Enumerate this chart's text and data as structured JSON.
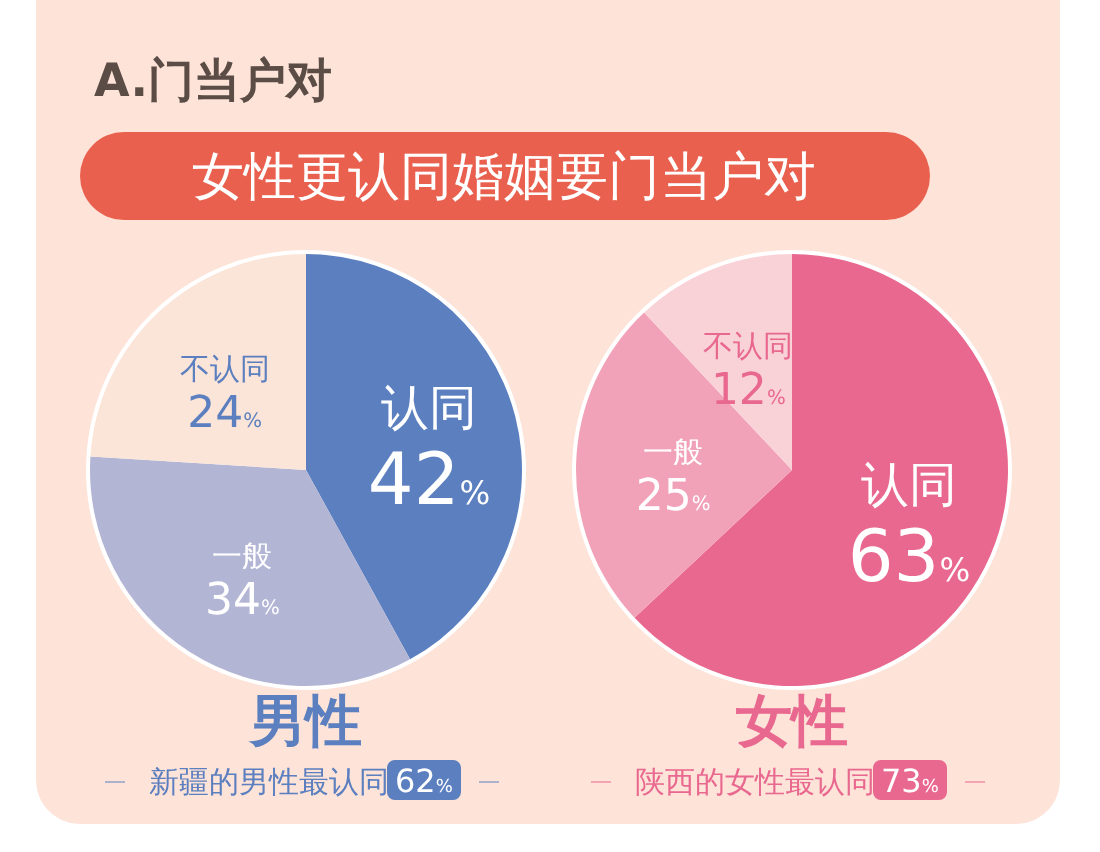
{
  "chart_data": [
    {
      "type": "pie",
      "title": "A.门当户对",
      "subtitle": "女性更认同婚姻要门当户对",
      "xlabel": "男性",
      "categories": [
        "认同",
        "一般",
        "不认同"
      ],
      "values": [
        42,
        34,
        24
      ],
      "colors": [
        "#5b7fbf",
        "#b3b5d5",
        "#fbe4d8"
      ],
      "value_labels": [
        "42%",
        "34%",
        "24%"
      ],
      "annotations": [
        "新疆的男性最认同62%"
      ]
    },
    {
      "type": "pie",
      "xlabel": "女性",
      "categories": [
        "认同",
        "一般",
        "不认同"
      ],
      "values": [
        63,
        25,
        12
      ],
      "colors": [
        "#e9688f",
        "#f2a2b8",
        "#f9d2d8"
      ],
      "value_labels": [
        "63%",
        "25%",
        "12%"
      ],
      "annotations": [
        "陕西的女性最认同73%"
      ]
    }
  ]
}
